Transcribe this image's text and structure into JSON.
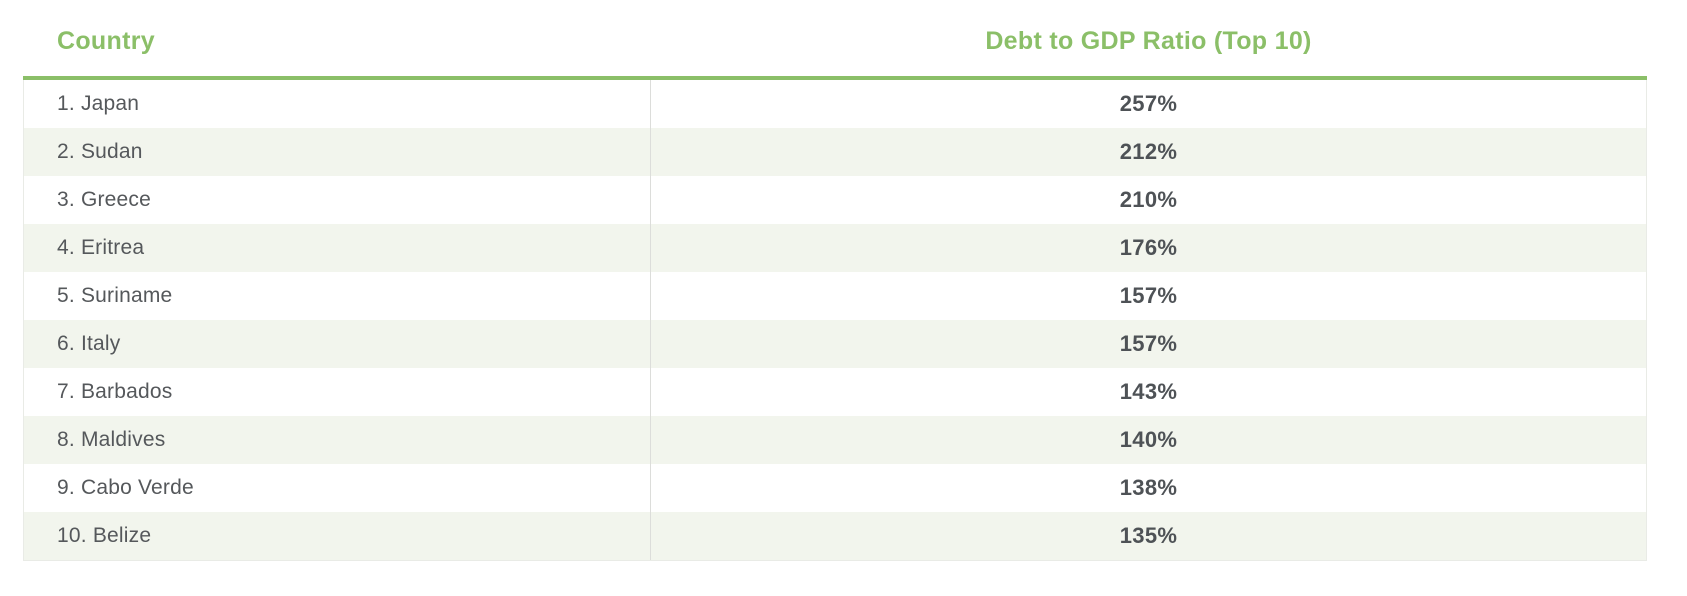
{
  "table": {
    "columns": [
      {
        "label": "Country"
      },
      {
        "label": "Debt to GDP Ratio (Top 10)"
      }
    ],
    "rows": [
      {
        "rank": "1",
        "country": "Japan",
        "ratio": "257%",
        "ratio_value": 257
      },
      {
        "rank": "2",
        "country": "Sudan",
        "ratio": "212%",
        "ratio_value": 212
      },
      {
        "rank": "3",
        "country": "Greece",
        "ratio": "210%",
        "ratio_value": 210
      },
      {
        "rank": "4",
        "country": "Eritrea",
        "ratio": "176%",
        "ratio_value": 176
      },
      {
        "rank": "5",
        "country": "Suriname",
        "ratio": "157%",
        "ratio_value": 157
      },
      {
        "rank": "6",
        "country": "Italy",
        "ratio": "157%",
        "ratio_value": 157
      },
      {
        "rank": "7",
        "country": "Barbados",
        "ratio": "143%",
        "ratio_value": 143
      },
      {
        "rank": "8",
        "country": "Maldives",
        "ratio": "140%",
        "ratio_value": 140
      },
      {
        "rank": "9",
        "country": "Cabo Verde",
        "ratio": "138%",
        "ratio_value": 138
      },
      {
        "rank": "10",
        "country": "Belize",
        "ratio": "135%",
        "ratio_value": 135
      }
    ]
  },
  "chart_data": {
    "type": "table",
    "title": "Debt to GDP Ratio (Top 10)",
    "columns": [
      "Country",
      "Debt to GDP Ratio (Top 10)"
    ],
    "categories": [
      "Japan",
      "Sudan",
      "Greece",
      "Eritrea",
      "Suriname",
      "Italy",
      "Barbados",
      "Maldives",
      "Cabo Verde",
      "Belize"
    ],
    "values": [
      257,
      212,
      210,
      176,
      157,
      157,
      143,
      140,
      138,
      135
    ],
    "unit": "%",
    "layout": "ranked table, alternating row stripes, values bold centered in right column"
  },
  "colors": {
    "accent_green": "#8bbf68",
    "stripe": "#f2f5ed",
    "text_gray": "#55585b",
    "value_gray": "#4e5256",
    "divider": "#dcddda"
  }
}
